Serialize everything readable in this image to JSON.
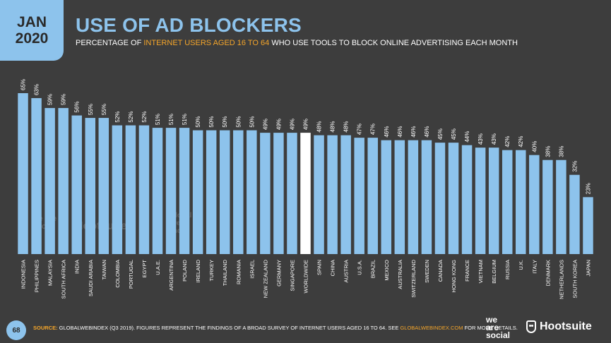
{
  "badge": {
    "month": "JAN",
    "year": "2020"
  },
  "header": {
    "title": "USE OF AD BLOCKERS",
    "subtitle_pre": "PERCENTAGE OF ",
    "subtitle_highlight": "INTERNET USERS AGED 16 TO 64",
    "subtitle_post": " WHO USE TOOLS TO BLOCK ONLINE ADVERTISING EACH MONTH"
  },
  "colors": {
    "bar": "#8dc3ec",
    "highlight_bar": "#ffffff",
    "background": "#3d3d3d",
    "accent": "#f4a52a"
  },
  "chart_data": {
    "type": "bar",
    "title": "USE OF AD BLOCKERS",
    "categories": [
      "INDONESIA",
      "PHILIPPINES",
      "MALAYSIA",
      "SOUTH AFRICA",
      "INDIA",
      "SAUDI ARABIA",
      "TAIWAN",
      "COLOMBIA",
      "PORTUGAL",
      "EGYPT",
      "U.A.E.",
      "ARGENTINA",
      "POLAND",
      "IRELAND",
      "TURKEY",
      "THAILAND",
      "ROMANIA",
      "ISRAEL",
      "NEW ZEALAND",
      "GERMANY",
      "SINGAPORE",
      "WORLDWIDE",
      "SPAIN",
      "CHINA",
      "AUSTRIA",
      "U.S.A.",
      "BRAZIL",
      "MEXICO",
      "AUSTRALIA",
      "SWITZERLAND",
      "SWEDEN",
      "CANADA",
      "HONG KONG",
      "FRANCE",
      "VIETNAM",
      "BELGIUM",
      "RUSSIA",
      "U.K.",
      "ITALY",
      "DENMARK",
      "NETHERLANDS",
      "SOUTH KOREA",
      "JAPAN"
    ],
    "values": [
      65,
      63,
      59,
      59,
      56,
      55,
      55,
      52,
      52,
      52,
      51,
      51,
      51,
      50,
      50,
      50,
      50,
      50,
      49,
      49,
      49,
      49,
      48,
      48,
      48,
      47,
      47,
      46,
      46,
      46,
      46,
      45,
      45,
      44,
      43,
      43,
      42,
      42,
      40,
      38,
      38,
      32,
      23
    ],
    "value_labels": [
      "65%",
      "63%",
      "59%",
      "59%",
      "56%",
      "55%",
      "55%",
      "52%",
      "52%",
      "52%",
      "51%",
      "51%",
      "51%",
      "50%",
      "50%",
      "50%",
      "50%",
      "50%",
      "49%",
      "49%",
      "49%",
      "49%",
      "48%",
      "48%",
      "48%",
      "47%",
      "47%",
      "46%",
      "46%",
      "46%",
      "46%",
      "45%",
      "45%",
      "44%",
      "43%",
      "43%",
      "42%",
      "42%",
      "40%",
      "38%",
      "38%",
      "32%",
      "23%"
    ],
    "highlight_category": "WORLDWIDE",
    "ylim": [
      0,
      65
    ],
    "grid": false,
    "xlabel": "",
    "ylabel": ""
  },
  "footer": {
    "page_number": "68",
    "source_label": "SOURCE:",
    "source_text": " GLOBALWEBINDEX (Q3 2019). FIGURES REPRESENT THE FINDINGS OF A BROAD SURVEY OF INTERNET USERS AGED 16 TO 64. SEE ",
    "source_link": "GLOBALWEBINDEX.COM",
    "source_tail": " FOR MORE DETAILS.",
    "brand_1_line1": "we",
    "brand_1_line2": "are",
    "brand_1_line3": "social",
    "brand_2": "Hootsuite"
  },
  "watermarks": [
    "we are social",
    "Hootsuite",
    "global web index"
  ]
}
